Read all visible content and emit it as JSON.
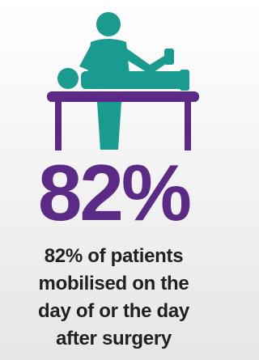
{
  "stat": {
    "value_label": "82%",
    "caption_lines": [
      "82% of patients",
      "mobilised on the",
      "day of or the day",
      "after surgery"
    ]
  }
}
